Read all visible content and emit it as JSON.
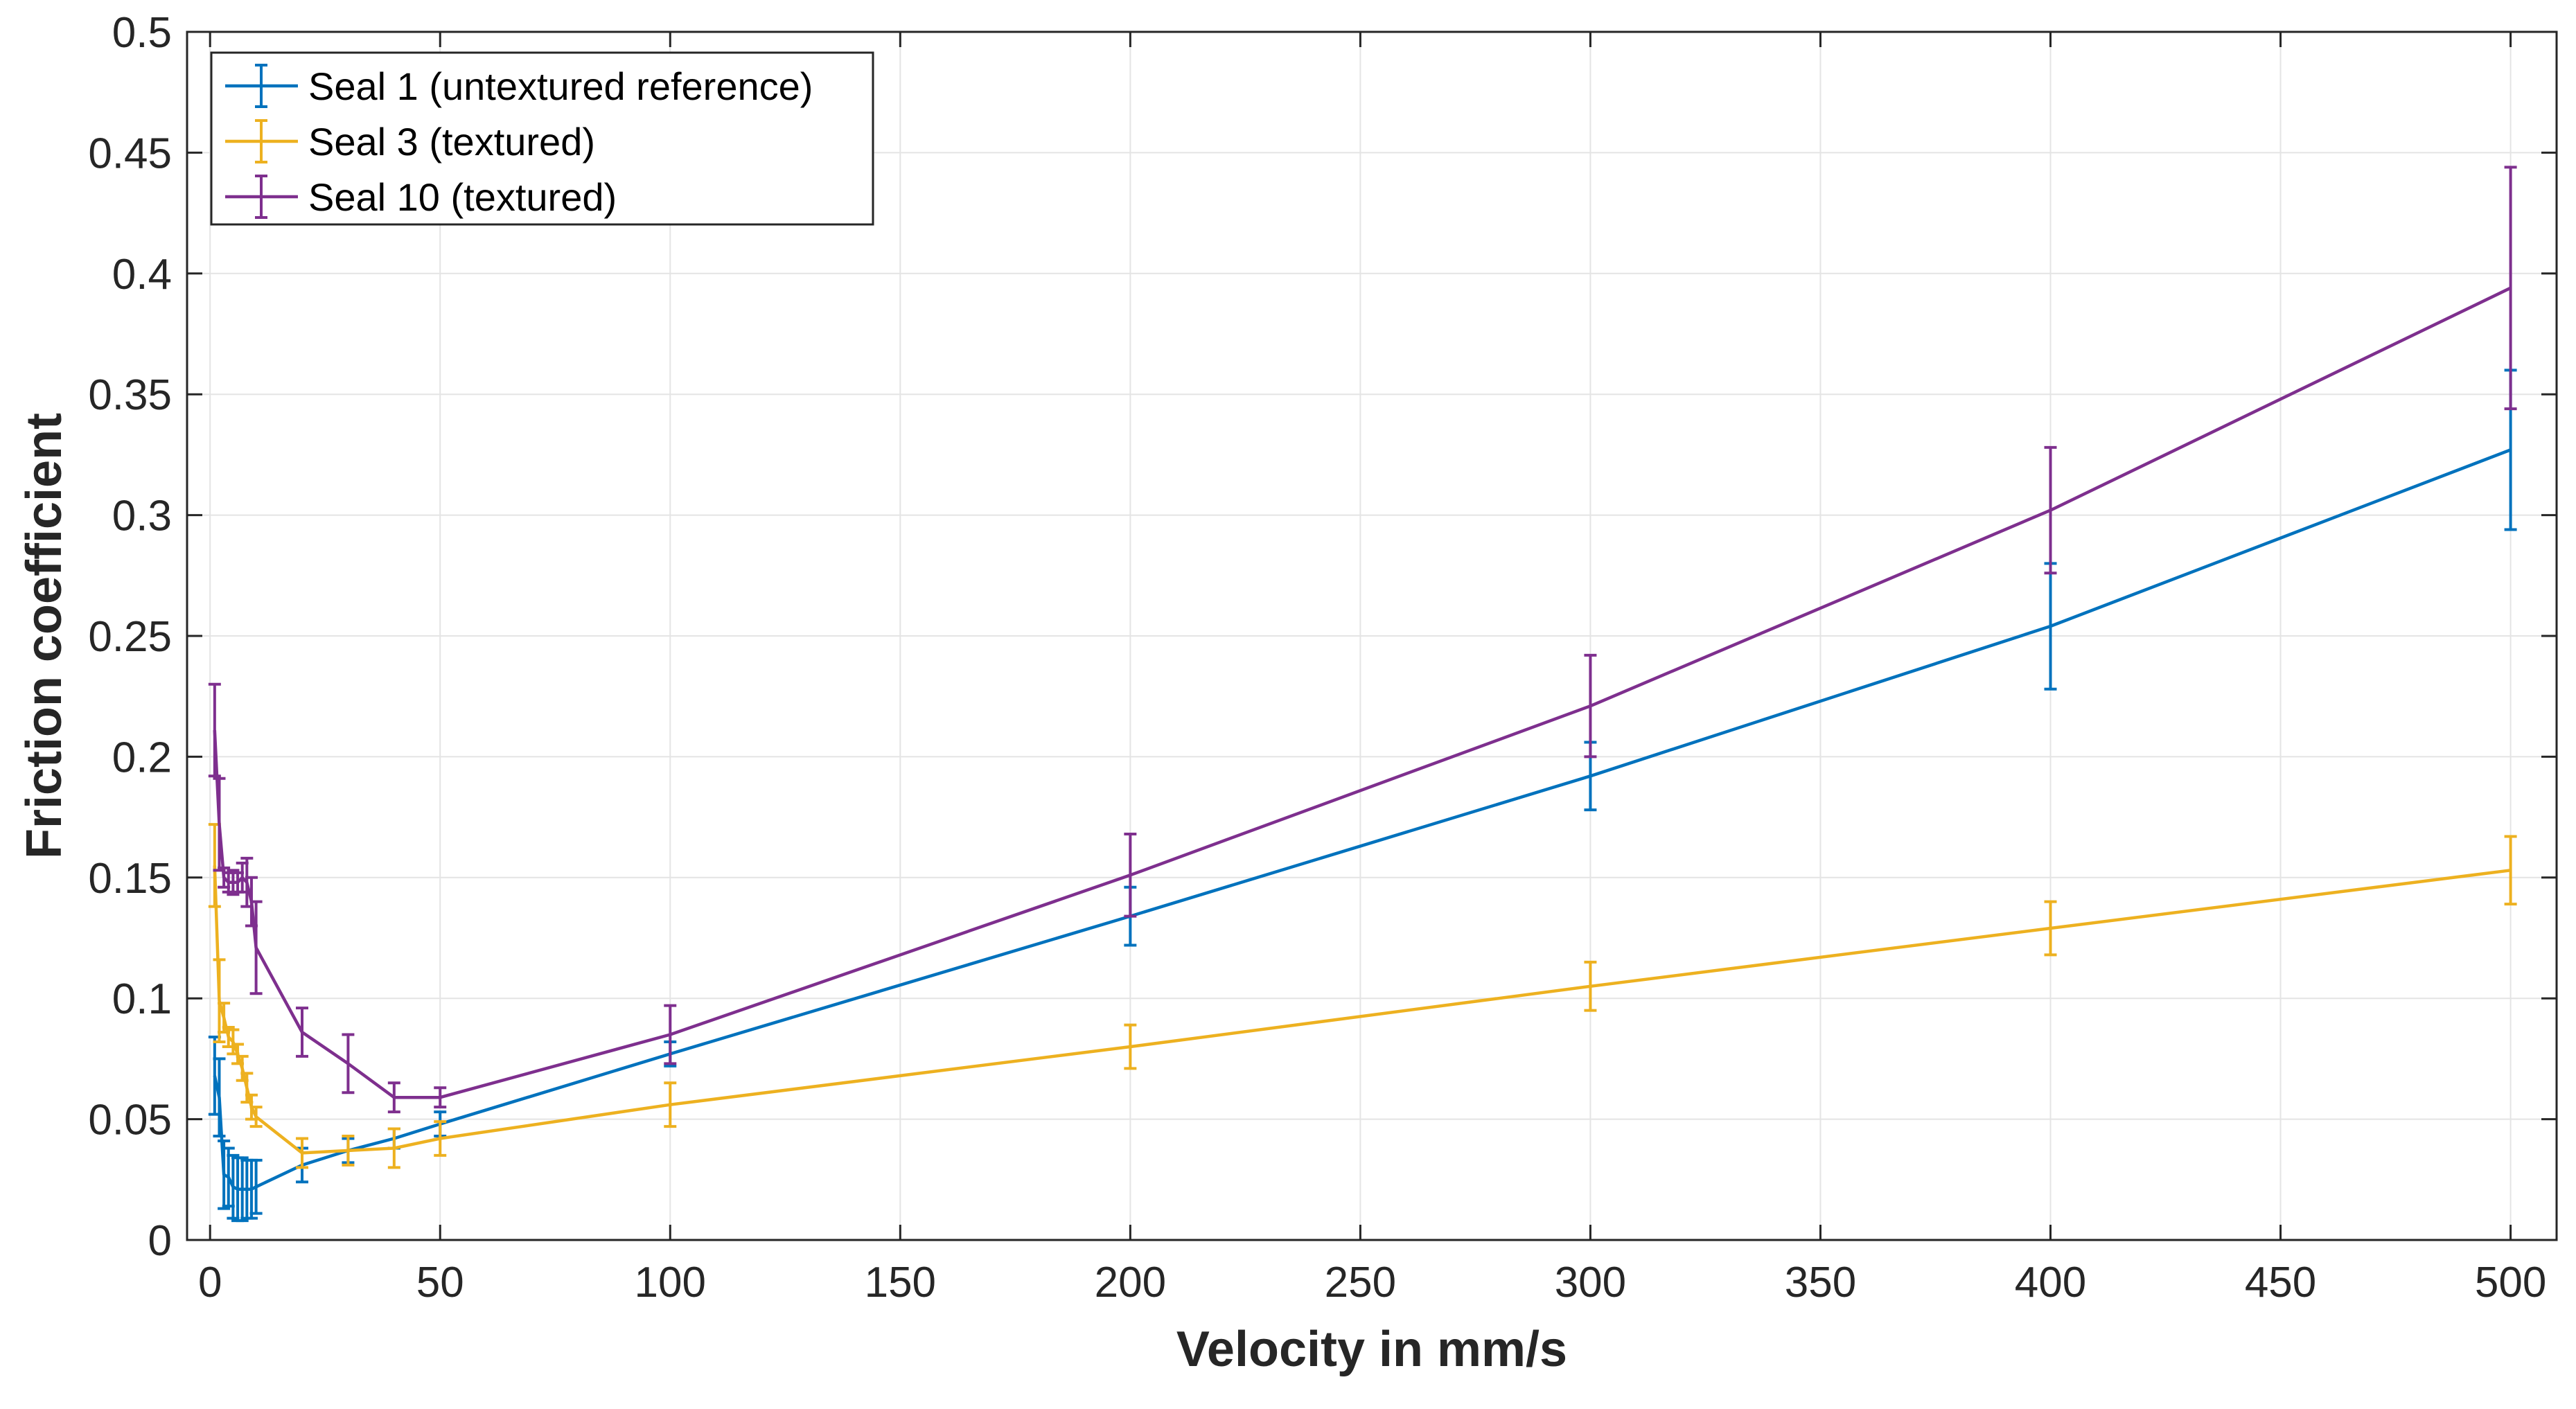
{
  "chart_data": {
    "type": "line",
    "title": "",
    "xlabel": "Velocity in mm/s",
    "ylabel": "Friction coefficient",
    "xlim": [
      -5,
      510
    ],
    "ylim": [
      0,
      0.5
    ],
    "grid": true,
    "legend_position": "top-left",
    "x_ticks": [
      0,
      50,
      100,
      150,
      200,
      250,
      300,
      350,
      400,
      450,
      500
    ],
    "y_ticks": [
      0,
      0.05,
      0.1,
      0.15,
      0.2,
      0.25,
      0.3,
      0.35,
      0.4,
      0.45,
      0.5
    ],
    "x_tick_labels": [
      "0",
      "50",
      "100",
      "150",
      "200",
      "250",
      "300",
      "350",
      "400",
      "450",
      "500"
    ],
    "y_tick_labels": [
      "0",
      "0.05",
      "0.1",
      "0.15",
      "0.2",
      "0.25",
      "0.3",
      "0.35",
      "0.4",
      "0.45",
      "0.5"
    ],
    "series": [
      {
        "name": "Seal 1 (untextured reference)",
        "color": "#0072BD",
        "x": [
          1,
          2,
          3,
          4,
          5,
          6,
          7,
          8,
          9,
          10,
          20,
          30,
          40,
          50,
          100,
          200,
          300,
          400,
          500
        ],
        "y": [
          0.068,
          0.059,
          0.027,
          0.026,
          0.022,
          0.021,
          0.021,
          0.021,
          0.021,
          0.022,
          0.031,
          0.037,
          0.042,
          0.048,
          0.077,
          0.134,
          0.192,
          0.254,
          0.327
        ],
        "err": [
          0.016,
          0.016,
          0.014,
          0.012,
          0.013,
          0.013,
          0.013,
          0.012,
          0.012,
          0.011,
          0.007,
          0.005,
          0.004,
          0.005,
          0.005,
          0.012,
          0.014,
          0.026,
          0.033
        ]
      },
      {
        "name": "Seal 3 (textured)",
        "color": "#EDB120",
        "x": [
          1,
          2,
          3,
          4,
          5,
          6,
          7,
          8,
          9,
          10,
          20,
          30,
          40,
          50,
          100,
          200,
          300,
          400,
          500
        ],
        "y": [
          0.155,
          0.099,
          0.092,
          0.084,
          0.082,
          0.077,
          0.071,
          0.063,
          0.055,
          0.051,
          0.036,
          0.037,
          0.038,
          0.042,
          0.056,
          0.08,
          0.105,
          0.129,
          0.153
        ],
        "err": [
          0.017,
          0.017,
          0.006,
          0.004,
          0.005,
          0.004,
          0.005,
          0.006,
          0.005,
          0.004,
          0.006,
          0.006,
          0.008,
          0.007,
          0.009,
          0.009,
          0.01,
          0.011,
          0.014
        ]
      },
      {
        "name": "Seal 10 (textured)",
        "color": "#7E2F8E",
        "x": [
          1,
          2,
          3,
          4,
          5,
          6,
          7,
          8,
          9,
          10,
          20,
          30,
          40,
          50,
          100,
          200,
          300,
          400,
          500
        ],
        "y": [
          0.211,
          0.172,
          0.15,
          0.148,
          0.148,
          0.148,
          0.15,
          0.148,
          0.14,
          0.121,
          0.086,
          0.073,
          0.059,
          0.059,
          0.085,
          0.151,
          0.221,
          0.302,
          0.394
        ],
        "err": [
          0.019,
          0.019,
          0.004,
          0.004,
          0.005,
          0.004,
          0.006,
          0.01,
          0.01,
          0.019,
          0.01,
          0.012,
          0.006,
          0.004,
          0.012,
          0.017,
          0.021,
          0.026,
          0.05
        ]
      }
    ]
  }
}
